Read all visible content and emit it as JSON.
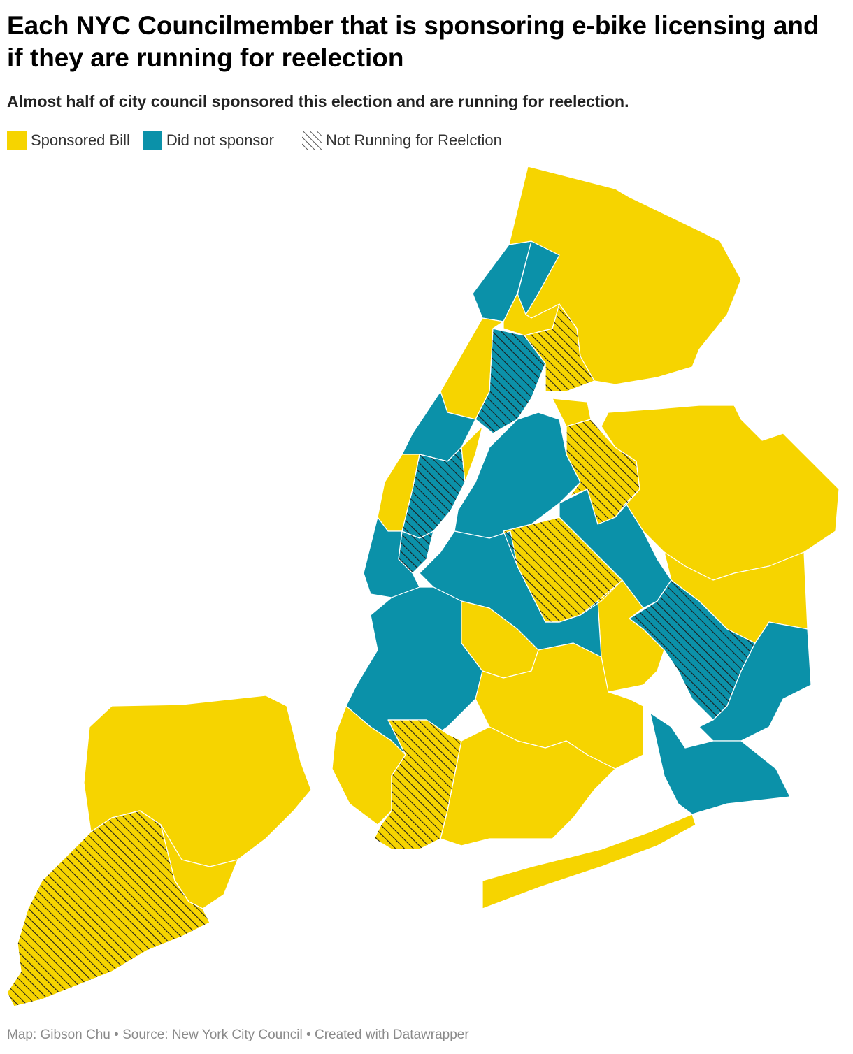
{
  "title": "Each NYC Councilmember that is sponsoring e-bike licensing and if they are running for reelection",
  "subtitle": "Almost half of city council sponsored this election and are running for reelection.",
  "legend": {
    "sponsored_label": "Sponsored Bill",
    "not_sponsored_label": "Did not sponsor",
    "not_running_label": "Not Running for Reelction"
  },
  "colors": {
    "sponsored": "#f6d400",
    "not_sponsored": "#0b91a9",
    "hatch": "#1c1c1c"
  },
  "footer": {
    "map_credit": "Map: Gibson Chu",
    "source": "Source: New York City Council",
    "tool": "Created with Datawrapper",
    "separator": " • "
  },
  "map_data": {
    "type": "choropleth",
    "regions": [
      {
        "id": "bronx-riverdale",
        "sponsored": false,
        "running": true
      },
      {
        "id": "bronx-kingsbridge",
        "sponsored": false,
        "running": true
      },
      {
        "id": "bronx-norwood",
        "sponsored": true,
        "running": true
      },
      {
        "id": "bronx-south-hatched",
        "sponsored": false,
        "running": false
      },
      {
        "id": "bronx-northeast",
        "sponsored": true,
        "running": true
      },
      {
        "id": "bronx-east-hatched",
        "sponsored": true,
        "running": false
      },
      {
        "id": "bronx-throgs-neck",
        "sponsored": true,
        "running": true
      },
      {
        "id": "manhattan-inwood",
        "sponsored": true,
        "running": true
      },
      {
        "id": "manhattan-washington-heights",
        "sponsored": false,
        "running": true
      },
      {
        "id": "manhattan-harlem-hatched",
        "sponsored": false,
        "running": false
      },
      {
        "id": "manhattan-east-harlem",
        "sponsored": true,
        "running": true
      },
      {
        "id": "manhattan-upper-west",
        "sponsored": true,
        "running": true
      },
      {
        "id": "manhattan-midtown-hatched",
        "sponsored": false,
        "running": false
      },
      {
        "id": "manhattan-lower",
        "sponsored": false,
        "running": true
      },
      {
        "id": "queens-astoria",
        "sponsored": false,
        "running": true
      },
      {
        "id": "queens-jackson-heights-hatched",
        "sponsored": true,
        "running": false
      },
      {
        "id": "queens-northeast",
        "sponsored": true,
        "running": true
      },
      {
        "id": "queens-east",
        "sponsored": true,
        "running": true
      },
      {
        "id": "queens-forest-hills-hatched",
        "sponsored": true,
        "running": false
      },
      {
        "id": "queens-rego-park",
        "sponsored": false,
        "running": true
      },
      {
        "id": "queens-jamaica-hatched",
        "sponsored": false,
        "running": false
      },
      {
        "id": "queens-southeast",
        "sponsored": false,
        "running": true
      },
      {
        "id": "queens-rockaway",
        "sponsored": false,
        "running": true
      },
      {
        "id": "brooklyn-north",
        "sponsored": false,
        "running": true
      },
      {
        "id": "brooklyn-west",
        "sponsored": false,
        "running": true
      },
      {
        "id": "brooklyn-central",
        "sponsored": true,
        "running": true
      },
      {
        "id": "brooklyn-east",
        "sponsored": true,
        "running": true
      },
      {
        "id": "brooklyn-bay-ridge",
        "sponsored": true,
        "running": true
      },
      {
        "id": "brooklyn-bensonhurst-hatched",
        "sponsored": true,
        "running": false
      },
      {
        "id": "brooklyn-southeast",
        "sponsored": true,
        "running": true
      },
      {
        "id": "rockaway-peninsula",
        "sponsored": true,
        "running": true
      },
      {
        "id": "staten-island-north",
        "sponsored": true,
        "running": true
      },
      {
        "id": "staten-island-mid",
        "sponsored": true,
        "running": true
      },
      {
        "id": "staten-island-south-hatched",
        "sponsored": true,
        "running": false
      }
    ]
  }
}
